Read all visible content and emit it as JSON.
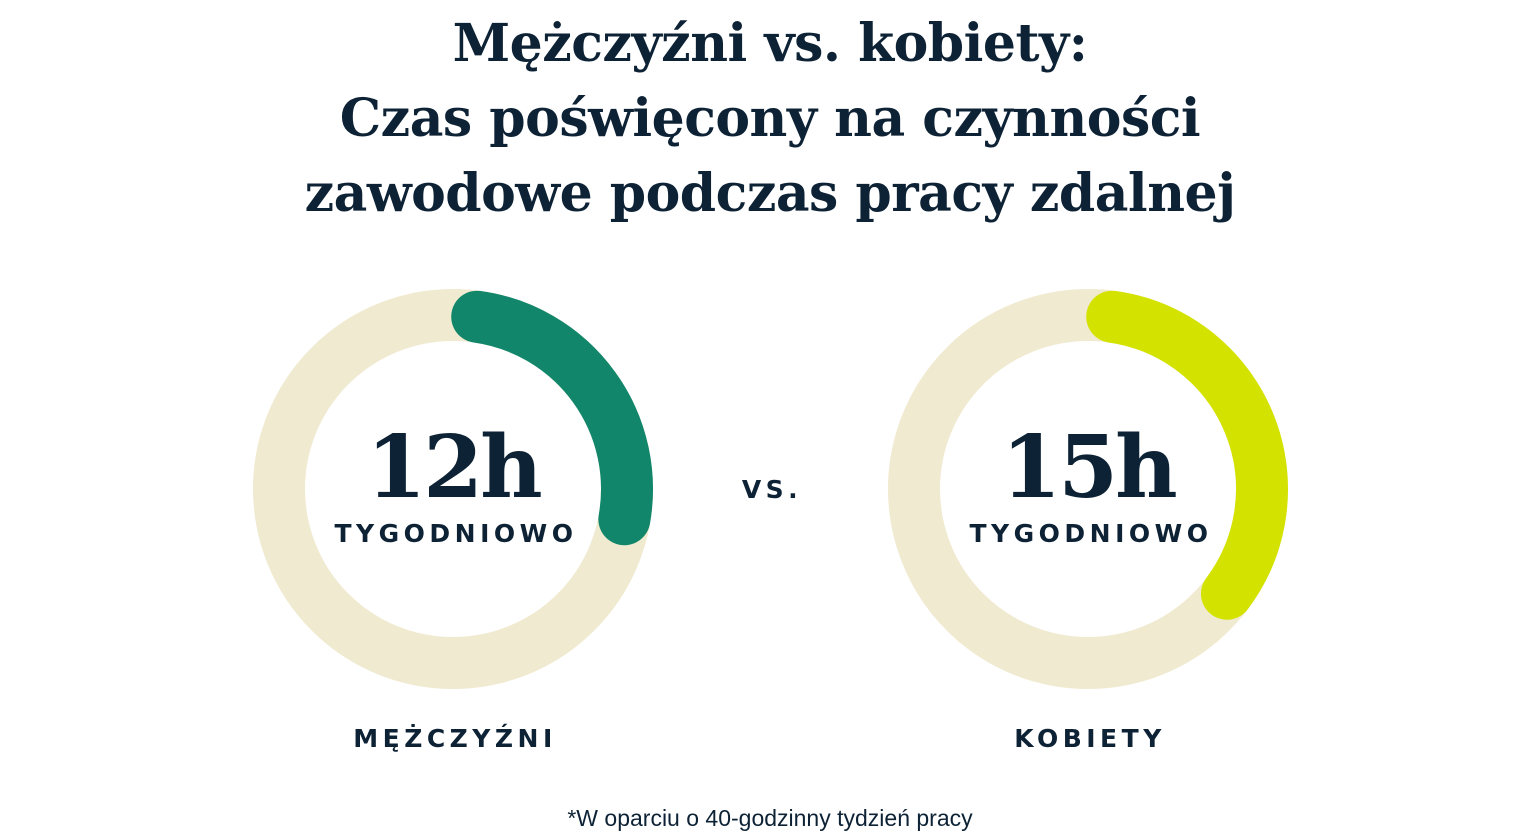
{
  "chart_data": {
    "type": "pie",
    "title": [
      "Mężczyźni vs. kobiety:",
      "Czas poświęcony na czynności",
      "zawodowe podczas pracy zdalnej"
    ],
    "total": 40,
    "series": [
      {
        "name": "MĘŻCZYŹNI",
        "value": 12,
        "label": "12h",
        "sublabel": "TYGODNIOWO",
        "color": "#11866a"
      },
      {
        "name": "KOBIETY",
        "value": 15,
        "label": "15h",
        "sublabel": "TYGODNIOWO",
        "color": "#d4e200"
      }
    ],
    "track_color": "#f0ead0",
    "separator": "VS.",
    "footnote": "*W oparciu o 40-godzinny tydzień pracy"
  }
}
